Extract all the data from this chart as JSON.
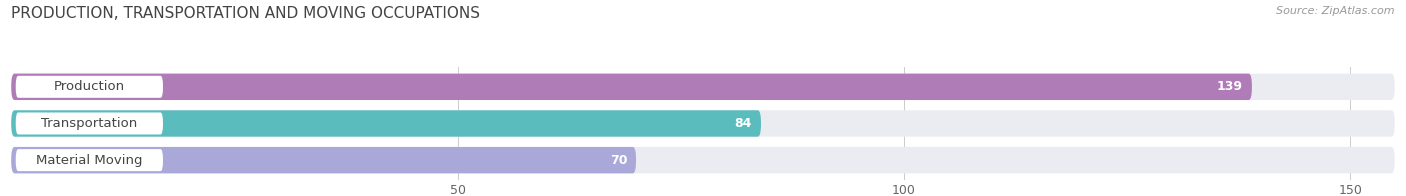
{
  "title": "PRODUCTION, TRANSPORTATION AND MOVING OCCUPATIONS",
  "source": "Source: ZipAtlas.com",
  "categories": [
    "Production",
    "Transportation",
    "Material Moving"
  ],
  "values": [
    139,
    84,
    70
  ],
  "bar_colors": [
    "#b07cb8",
    "#5bbcbe",
    "#a9a8d8"
  ],
  "bar_bg_color": "#ebebf2",
  "xlim": [
    0,
    155
  ],
  "xticks": [
    50,
    100,
    150
  ],
  "title_fontsize": 11,
  "label_fontsize": 9.5,
  "value_fontsize": 9,
  "background_color": "#ffffff"
}
